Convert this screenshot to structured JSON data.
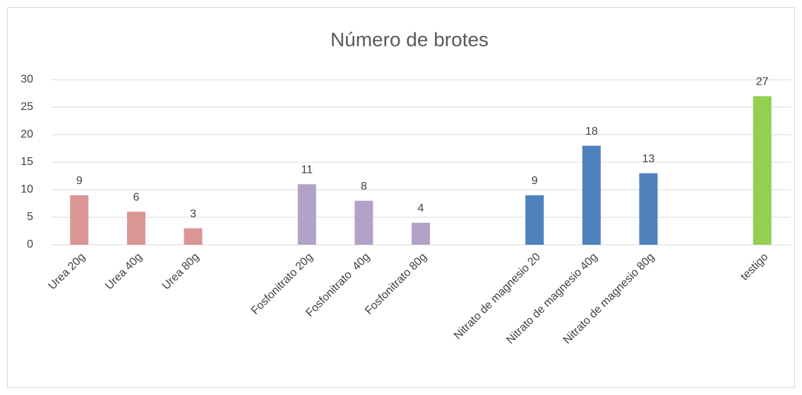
{
  "chart_data": {
    "type": "bar",
    "title": "Número de brotes",
    "categories": [
      "Urea 20g",
      "Urea 40g",
      "Urea 80g",
      null,
      "Fosfonitrato 20g",
      "Fosfonitrato  40g",
      "Fosfonitrato 80g",
      null,
      "Nitrato de magnesio 20",
      "Nitrato de magnesio 40g",
      "Nitrato de magnesio 80g",
      null,
      "testigo"
    ],
    "values": [
      9,
      6,
      3,
      null,
      11,
      8,
      4,
      null,
      9,
      18,
      13,
      null,
      27
    ],
    "colors": [
      "#da9694",
      "#da9694",
      "#da9694",
      null,
      "#b3a2c7",
      "#b3a2c7",
      "#b3a2c7",
      null,
      "#4f81bd",
      "#4f81bd",
      "#4f81bd",
      null,
      "#92d050"
    ],
    "ylim": [
      0,
      30
    ],
    "yticks": [
      0,
      5,
      10,
      15,
      20,
      25,
      30
    ],
    "grid": true
  }
}
